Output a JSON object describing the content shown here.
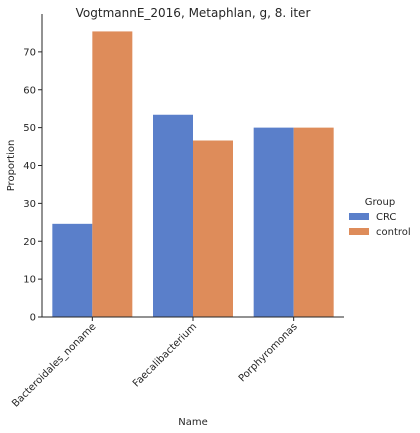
{
  "chart_data": {
    "type": "bar",
    "title": "VogtmannE_2016, Metaphlan, g, 8. iter",
    "xlabel": "Name",
    "ylabel": "Proportion",
    "categories": [
      "Bacteroidales_noname",
      "Faecalibacterium",
      "Porphyromonas"
    ],
    "series": [
      {
        "name": "CRC",
        "values": [
          24.6,
          53.4,
          50.0
        ],
        "color": "#5a7fca"
      },
      {
        "name": "control",
        "values": [
          75.4,
          46.6,
          50.0
        ],
        "color": "#de8c5a"
      }
    ],
    "ylim": [
      0,
      80
    ],
    "yticks": [
      0,
      10,
      20,
      30,
      40,
      50,
      60,
      70
    ],
    "grid": false,
    "legend": {
      "title": "Group",
      "placement": "right"
    }
  }
}
